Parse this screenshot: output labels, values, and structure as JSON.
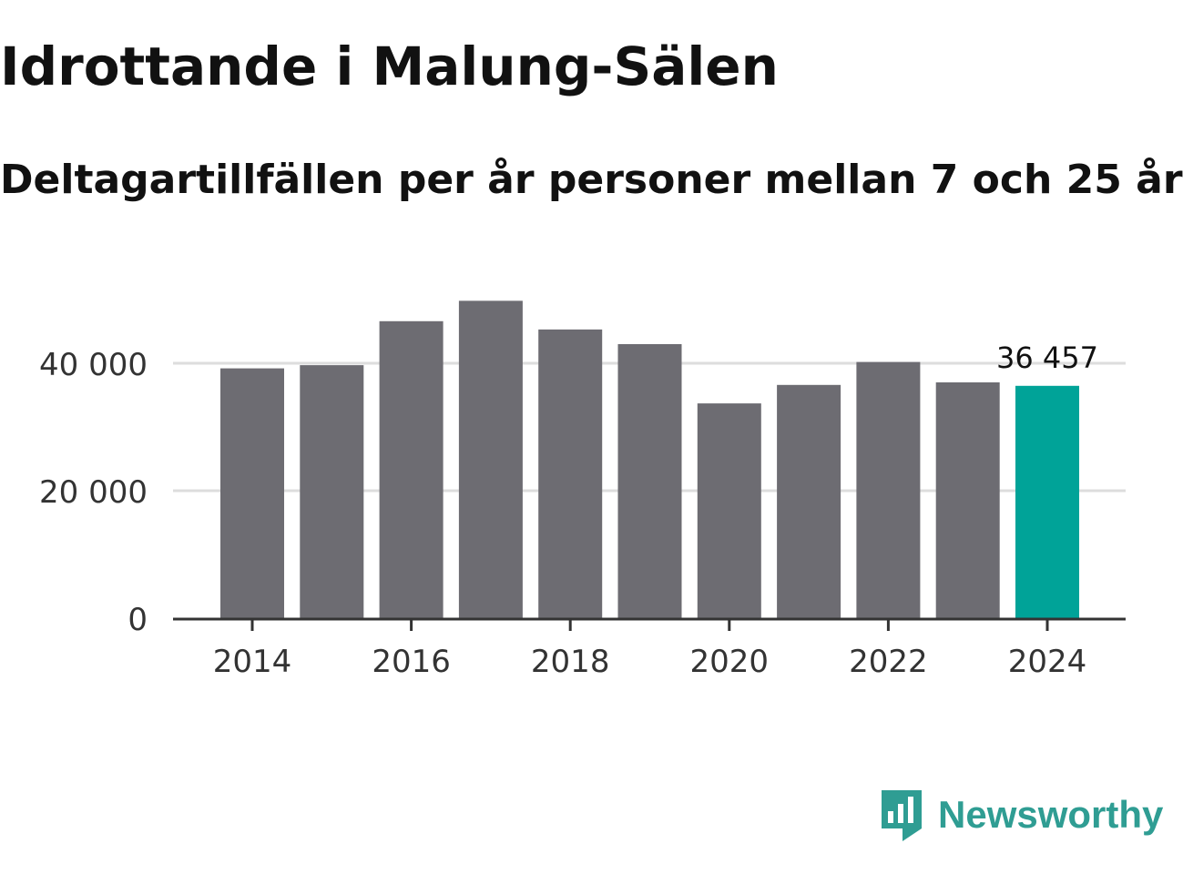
{
  "chart_data": {
    "type": "bar",
    "title": "Idrottande i Malung-Sälen",
    "subtitle": "Deltagartillfällen per år personer mellan 7 och 25 år",
    "categories": [
      2014,
      2015,
      2016,
      2017,
      2018,
      2019,
      2020,
      2021,
      2022,
      2023,
      2024
    ],
    "values": [
      39200,
      39700,
      46600,
      49800,
      45300,
      43000,
      33700,
      36600,
      40200,
      37000,
      36457
    ],
    "highlight_index": 10,
    "highlight_label": "36 457",
    "xticks": [
      2014,
      2016,
      2018,
      2020,
      2022,
      2024
    ],
    "xtick_labels": [
      "2014",
      "2016",
      "2018",
      "2020",
      "2022",
      "2024"
    ],
    "yticks": [
      0,
      20000,
      40000
    ],
    "ytick_labels": [
      "0",
      "20 000",
      "40 000"
    ],
    "ylim": [
      0,
      50000
    ],
    "xlabel": "",
    "ylabel": "",
    "grid": true,
    "colors": {
      "bar": "#6d6c72",
      "highlight": "#00a398",
      "grid": "#dddddd",
      "axis": "#333333"
    }
  },
  "branding": {
    "name": "Newsworthy",
    "icon": "newsworthy-logo-icon",
    "color": "#2f9d93"
  }
}
